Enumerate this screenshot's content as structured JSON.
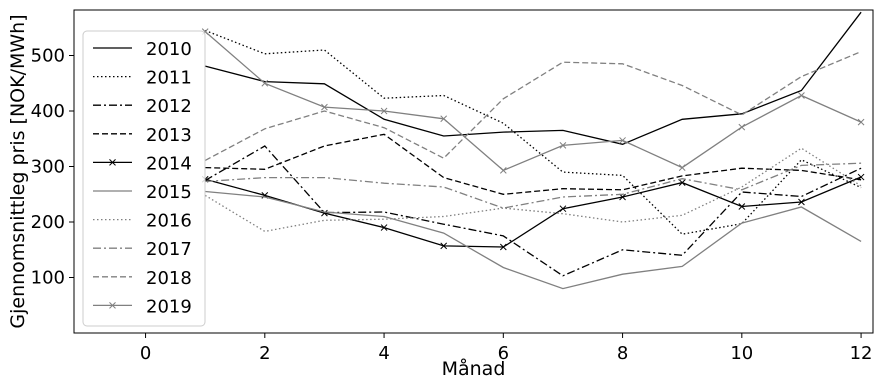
{
  "chart_data": {
    "type": "line",
    "title": "",
    "xlabel": "Månad",
    "ylabel": "Gjennomsnittleg pris [NOK/MWh]",
    "xlim": [
      -1.2,
      12.2
    ],
    "ylim": [
      0,
      582
    ],
    "xticks": [
      0,
      2,
      4,
      6,
      8,
      10,
      12
    ],
    "yticks": [
      100,
      200,
      300,
      400,
      500
    ],
    "grid": false,
    "legend_position": "upper-left",
    "x": [
      1,
      2,
      3,
      4,
      5,
      6,
      7,
      8,
      9,
      10,
      11,
      12
    ],
    "series": [
      {
        "name": "2010",
        "color": "#000000",
        "style": "solid",
        "marker": "none",
        "values": [
          481,
          453,
          449,
          385,
          355,
          362,
          365,
          340,
          385,
          395,
          437,
          578
        ]
      },
      {
        "name": "2011",
        "color": "#000000",
        "style": "dotted",
        "marker": "none",
        "values": [
          545,
          503,
          510,
          423,
          428,
          378,
          290,
          284,
          178,
          197,
          312,
          262
        ]
      },
      {
        "name": "2012",
        "color": "#000000",
        "style": "dashdot",
        "marker": "none",
        "values": [
          275,
          337,
          217,
          218,
          196,
          175,
          103,
          150,
          140,
          254,
          246,
          297
        ]
      },
      {
        "name": "2013",
        "color": "#000000",
        "style": "dashed",
        "marker": "none",
        "values": [
          298,
          295,
          337,
          358,
          280,
          250,
          260,
          258,
          283,
          297,
          293,
          276
        ]
      },
      {
        "name": "2014",
        "color": "#000000",
        "style": "solid",
        "marker": "x",
        "values": [
          277,
          248,
          216,
          190,
          157,
          155,
          224,
          245,
          271,
          228,
          236,
          281
        ]
      },
      {
        "name": "2015",
        "color": "#808080",
        "style": "solid",
        "marker": "none",
        "values": [
          255,
          245,
          218,
          210,
          180,
          118,
          80,
          106,
          120,
          198,
          227,
          165
        ]
      },
      {
        "name": "2016",
        "color": "#808080",
        "style": "dotted",
        "marker": "none",
        "values": [
          248,
          183,
          203,
          205,
          210,
          225,
          215,
          200,
          212,
          263,
          333,
          265
        ]
      },
      {
        "name": "2017",
        "color": "#808080",
        "style": "dashdot",
        "marker": "none",
        "values": [
          273,
          280,
          280,
          270,
          263,
          225,
          245,
          250,
          278,
          258,
          302,
          306
        ]
      },
      {
        "name": "2018",
        "color": "#808080",
        "style": "dashed",
        "marker": "none",
        "values": [
          311,
          368,
          400,
          370,
          315,
          422,
          488,
          485,
          446,
          393,
          462,
          507
        ]
      },
      {
        "name": "2019",
        "color": "#808080",
        "style": "solid",
        "marker": "x",
        "values": [
          543,
          450,
          407,
          400,
          386,
          293,
          338,
          347,
          298,
          371,
          428,
          380
        ]
      }
    ]
  }
}
